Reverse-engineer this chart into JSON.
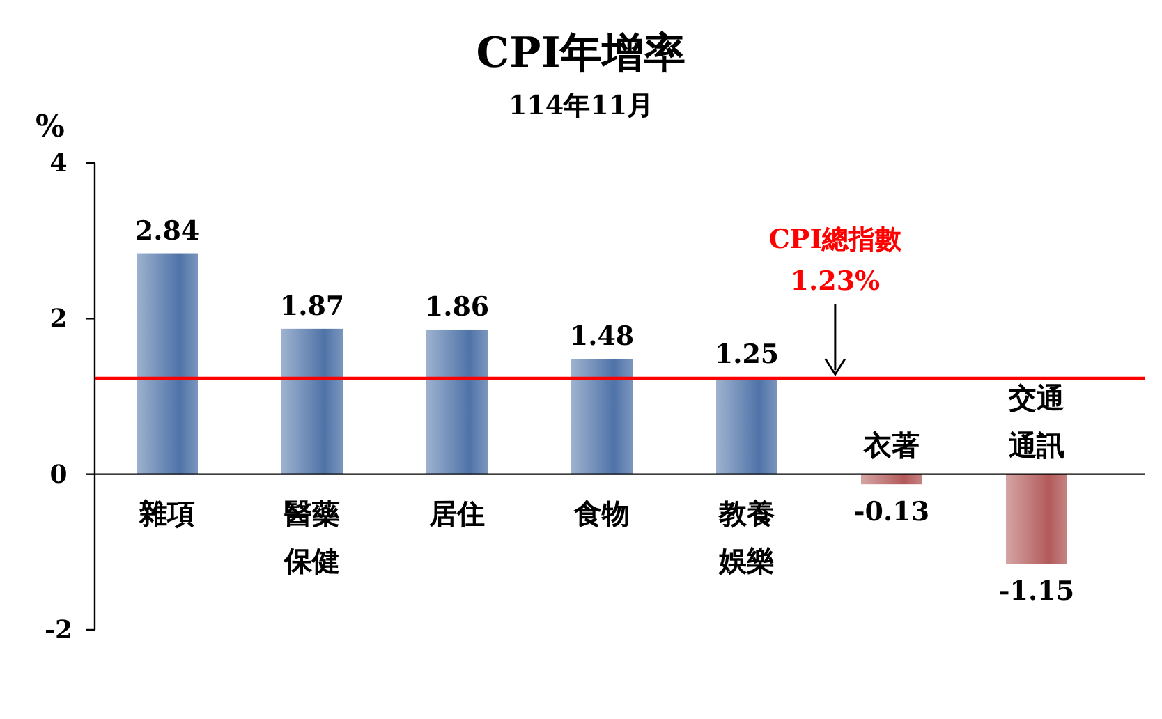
{
  "chart_data": {
    "type": "bar",
    "title": "CPI年增率",
    "subtitle": "114年11月",
    "ylabel": "%",
    "categories": [
      "雜項",
      "醫藥保健",
      "居住",
      "食物",
      "教養娛樂",
      "衣著",
      "交通通訊"
    ],
    "values": [
      2.84,
      1.87,
      1.86,
      1.48,
      1.25,
      -0.13,
      -1.15
    ],
    "colors": [
      "#4f73a8",
      "#4f73a8",
      "#4f73a8",
      "#4f73a8",
      "#4f73a8",
      "#b35a5a",
      "#b35a5a"
    ],
    "ylim": [
      -2,
      4
    ],
    "yticks": [
      -2,
      0,
      2,
      4
    ],
    "data_labels": true,
    "ref_lines": [
      {
        "axis": "y",
        "value": 1.23,
        "label": "CPI總指數 1.23%",
        "color": "#ff0000"
      }
    ]
  }
}
